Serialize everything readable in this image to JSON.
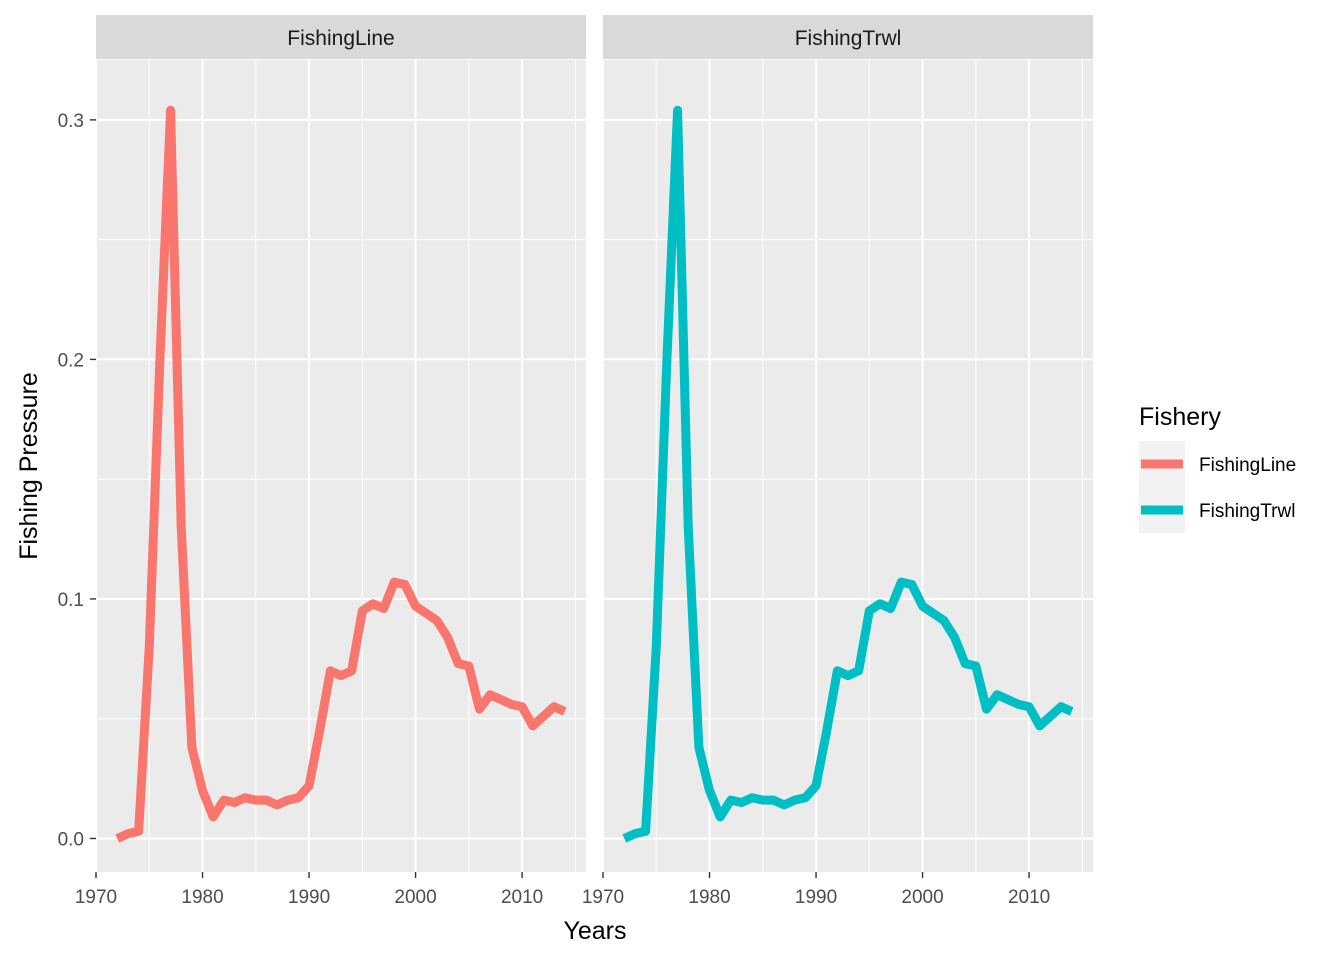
{
  "chart_data": {
    "type": "line",
    "xlabel": "Years",
    "ylabel": "Fishing Pressure",
    "xlim": [
      1970,
      2016
    ],
    "ylim": [
      -0.014,
      0.325
    ],
    "x_ticks": [
      1970,
      1980,
      1990,
      2000,
      2010
    ],
    "x_tick_labels": [
      "1970",
      "1980",
      "1990",
      "2000",
      "2010"
    ],
    "y_ticks": [
      0.0,
      0.1,
      0.2,
      0.3
    ],
    "y_tick_labels": [
      "0.0",
      "0.1",
      "0.2",
      "0.3"
    ],
    "grid": true,
    "facet_labels": [
      "FishingLine",
      "FishingTrwl"
    ],
    "legend": {
      "title": "Fishery",
      "position": "right",
      "entries": [
        "FishingLine",
        "FishingTrwl"
      ]
    },
    "colors": {
      "FishingLine": "#F8766D",
      "FishingTrwl": "#00BFC4"
    },
    "x": [
      1972,
      1973,
      1974,
      1975,
      1976,
      1977,
      1978,
      1979,
      1980,
      1981,
      1982,
      1983,
      1984,
      1985,
      1986,
      1987,
      1988,
      1989,
      1990,
      1991,
      1992,
      1993,
      1994,
      1995,
      1996,
      1997,
      1998,
      1999,
      2000,
      2001,
      2002,
      2003,
      2004,
      2005,
      2006,
      2007,
      2008,
      2009,
      2010,
      2011,
      2012,
      2013,
      2014
    ],
    "series": [
      {
        "name": "FishingLine",
        "values": [
          0.0,
          0.002,
          0.003,
          0.08,
          0.2,
          0.304,
          0.13,
          0.038,
          0.02,
          0.009,
          0.016,
          0.015,
          0.017,
          0.016,
          0.016,
          0.014,
          0.016,
          0.017,
          0.022,
          0.045,
          0.07,
          0.068,
          0.07,
          0.095,
          0.098,
          0.096,
          0.107,
          0.106,
          0.097,
          0.094,
          0.091,
          0.084,
          0.073,
          0.072,
          0.054,
          0.06,
          0.058,
          0.056,
          0.055,
          0.047,
          0.051,
          0.055,
          0.053
        ]
      },
      {
        "name": "FishingTrwl",
        "values": [
          0.0,
          0.002,
          0.003,
          0.08,
          0.2,
          0.304,
          0.13,
          0.038,
          0.02,
          0.009,
          0.016,
          0.015,
          0.017,
          0.016,
          0.016,
          0.014,
          0.016,
          0.017,
          0.022,
          0.045,
          0.07,
          0.068,
          0.07,
          0.095,
          0.098,
          0.096,
          0.107,
          0.106,
          0.097,
          0.094,
          0.091,
          0.084,
          0.073,
          0.072,
          0.054,
          0.06,
          0.058,
          0.056,
          0.055,
          0.047,
          0.051,
          0.055,
          0.053
        ]
      }
    ]
  }
}
